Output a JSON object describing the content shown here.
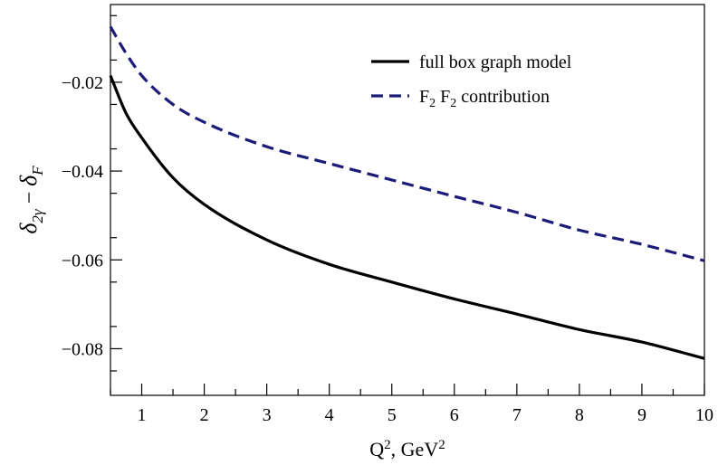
{
  "chart_data": {
    "type": "line",
    "xlabel": "Q², GeV²",
    "ylabel": "δ2γ − δF",
    "xlim": [
      0.5,
      10
    ],
    "ylim": [
      -0.0905,
      -0.0025
    ],
    "x_ticks": [
      1,
      2,
      3,
      4,
      5,
      6,
      7,
      8,
      9,
      10
    ],
    "x_tick_labels": [
      "1",
      "2",
      "3",
      "4",
      "5",
      "6",
      "7",
      "8",
      "9",
      "10"
    ],
    "y_ticks": [
      -0.02,
      -0.04,
      -0.06,
      -0.08
    ],
    "y_tick_labels": [
      "−0.02",
      "−0.04",
      "−0.06",
      "−0.08"
    ],
    "grid": false,
    "legend_position": "top-right",
    "series": [
      {
        "name": "full box graph model",
        "color": "#000000",
        "dash": "solid",
        "x": [
          0.5,
          0.75,
          1,
          1.5,
          2,
          3,
          4,
          5,
          6,
          7,
          8,
          9,
          10
        ],
        "y": [
          -0.0185,
          -0.027,
          -0.0325,
          -0.0415,
          -0.0475,
          -0.0555,
          -0.061,
          -0.065,
          -0.0688,
          -0.0722,
          -0.0757,
          -0.0785,
          -0.0822
        ]
      },
      {
        "name": "F2 F2 contribution",
        "color": "#1c1c78",
        "dash": "dashed",
        "x": [
          0.5,
          0.75,
          1,
          1.5,
          2,
          3,
          4,
          5,
          6,
          7,
          8,
          9,
          10
        ],
        "y": [
          -0.0075,
          -0.0135,
          -0.0185,
          -0.025,
          -0.029,
          -0.0345,
          -0.0383,
          -0.042,
          -0.0457,
          -0.0493,
          -0.0533,
          -0.0565,
          -0.0602
        ]
      }
    ]
  }
}
